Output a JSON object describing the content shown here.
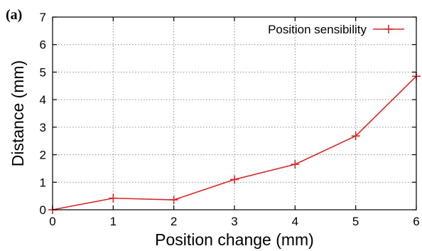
{
  "panel_label": "(a)",
  "colors": {
    "series": "#d62728",
    "grid": "#8c8c8c",
    "axis": "#000000"
  },
  "chart_data": {
    "type": "line",
    "title": "",
    "xlabel": "Position change (mm)",
    "ylabel": "Distance (mm)",
    "xlim": [
      0,
      6
    ],
    "ylim": [
      0,
      7
    ],
    "xticks": [
      "0",
      "1",
      "2",
      "3",
      "4",
      "5",
      "6"
    ],
    "yticks": [
      "0",
      "1",
      "2",
      "3",
      "4",
      "5",
      "6",
      "7"
    ],
    "grid": true,
    "legend_position": "top-right",
    "marker": "plus",
    "series": [
      {
        "name": "Position sensibility",
        "x": [
          0,
          1,
          2,
          3,
          4,
          5,
          6
        ],
        "y": [
          0.0,
          0.42,
          0.36,
          1.1,
          1.65,
          2.68,
          4.85
        ]
      }
    ]
  }
}
